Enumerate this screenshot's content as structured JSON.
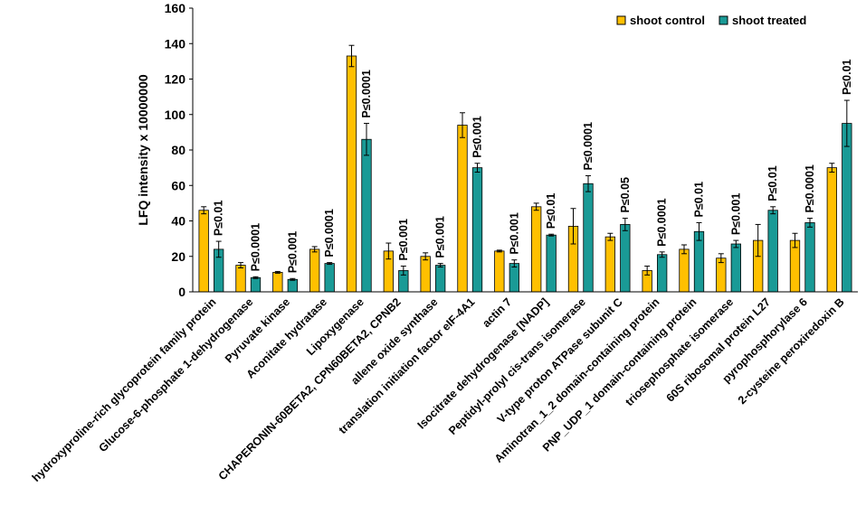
{
  "chart_data": {
    "type": "bar",
    "title": "",
    "xlabel": "",
    "ylabel": "LFQ intensity x 10000000",
    "ylim": [
      0,
      160
    ],
    "yticks": [
      0,
      20,
      40,
      60,
      80,
      100,
      120,
      140,
      160
    ],
    "grid": false,
    "legend_position": "top-right",
    "categories": [
      "hydroxyproline-rich glycoprotein family protein",
      "Glucose-6-phosphate 1-dehydrogenase",
      "Pyruvate kinase",
      "Aconitate hydratase",
      "Lipoxygenase",
      "CHAPERONIN-60BETA2, CPN60BETA2, CPNB2",
      "allene oxide synthase",
      "translation initiation factor eIF-4A1",
      "actin 7",
      "Isocitrate dehydrogenase [NADP]",
      "Peptidyl-prolyl cis-trans isomerase",
      "V-type proton ATPase subunit C",
      "Aminotran_1_2 domain-containing protein",
      "PNP_UDP_1 domain-containing protein",
      "triosephosphate isomerase",
      "60S ribosomal protein L27",
      "pyrophosphorylase 6",
      "2-cysteine peroxiredoxin B"
    ],
    "series": [
      {
        "name": "shoot control",
        "color": "#FFC000",
        "values": [
          46,
          15,
          11,
          24,
          133,
          23,
          20,
          94,
          23,
          48,
          37,
          31,
          12,
          24,
          19,
          29,
          29,
          70
        ],
        "errors": [
          2,
          1.5,
          0.5,
          1.5,
          6,
          4.5,
          2,
          7,
          0.5,
          2,
          10,
          2,
          2.5,
          2.5,
          2.5,
          9,
          4,
          2.5
        ]
      },
      {
        "name": "shoot treated",
        "color": "#1A9A96",
        "values": [
          24,
          8,
          7,
          16,
          86,
          12,
          15,
          70,
          16,
          32,
          61,
          38,
          21,
          34,
          27,
          46,
          39,
          95
        ],
        "errors": [
          4.5,
          0.5,
          0.5,
          0.5,
          9,
          2.5,
          1,
          2.5,
          2,
          0.5,
          4.5,
          3.5,
          1.5,
          5,
          2,
          2,
          2.5,
          13
        ]
      }
    ],
    "annotations": [
      "P≤0.01",
      "P≤0.0001",
      "P≤0.001",
      "P≤0.0001",
      "P≤0.0001",
      "P≤0.001",
      "P≤0.001",
      "P≤0.001",
      "P≤0.001",
      "P≤0.01",
      "P≤0.0001",
      "P≤0.05",
      "P≤0.0001",
      "P≤0.01",
      "P≤0.001",
      "P≤0.01",
      "P≤0.0001",
      "P≤0.01"
    ]
  }
}
